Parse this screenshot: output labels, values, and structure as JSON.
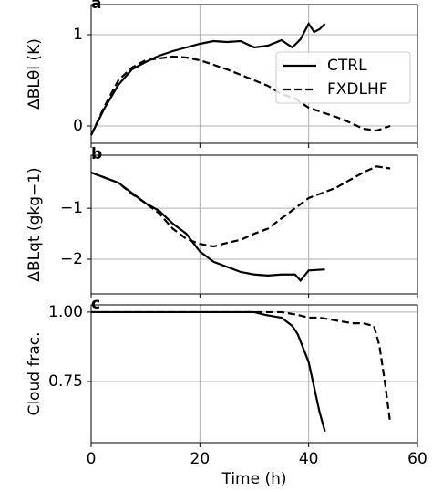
{
  "chart_data": [
    {
      "type": "line",
      "panel_label": "a",
      "ylabel": "ΔBLθl (K)",
      "xlim": [
        0,
        60
      ],
      "xticks": [
        0,
        20,
        40,
        60
      ],
      "ylim": [
        -0.19,
        1.33
      ],
      "yticks": [
        0,
        1
      ],
      "grid": true,
      "legend": "upper right",
      "series": [
        {
          "name": "CTRL",
          "color": "#000000",
          "linestyle": "solid",
          "x": [
            0,
            2.5,
            5,
            7.5,
            10,
            12.5,
            15,
            17.5,
            20,
            22.5,
            25,
            27.5,
            30,
            32.5,
            35,
            37,
            38.5,
            40,
            41,
            42,
            43
          ],
          "values": [
            -0.1,
            0.2,
            0.45,
            0.62,
            0.7,
            0.77,
            0.82,
            0.86,
            0.9,
            0.93,
            0.92,
            0.93,
            0.86,
            0.88,
            0.94,
            0.86,
            0.95,
            1.12,
            1.03,
            1.06,
            1.12
          ]
        },
        {
          "name": "FXDLHF",
          "color": "#000000",
          "linestyle": "dashed",
          "x": [
            0,
            2.5,
            5,
            7.5,
            10,
            12.5,
            15,
            17.5,
            20,
            22.5,
            25,
            27.5,
            30,
            32.5,
            35,
            37.5,
            40,
            42.5,
            45,
            47.5,
            50,
            52.5,
            55
          ],
          "values": [
            -0.1,
            0.22,
            0.5,
            0.64,
            0.72,
            0.74,
            0.76,
            0.75,
            0.72,
            0.67,
            0.62,
            0.56,
            0.5,
            0.44,
            0.35,
            0.3,
            0.2,
            0.15,
            0.1,
            0.04,
            -0.03,
            -0.05,
            0
          ]
        }
      ]
    },
    {
      "type": "line",
      "panel_label": "b",
      "ylabel": "ΔBLqt (gkg−1)",
      "xlim": [
        0,
        60
      ],
      "xticks": [
        0,
        20,
        40,
        60
      ],
      "ylim": [
        -2.68,
        0.04
      ],
      "yticks": [
        {
          "value": -2,
          "label": "−2"
        },
        {
          "value": -1,
          "label": "−1"
        }
      ],
      "grid": true,
      "series": [
        {
          "name": "CTRL",
          "color": "#000000",
          "linestyle": "solid",
          "x": [
            0,
            2.5,
            5,
            7.5,
            10,
            12.5,
            15,
            17.5,
            20,
            22.5,
            25,
            27.5,
            30,
            32.5,
            35,
            37.5,
            38.5,
            40,
            43
          ],
          "values": [
            -0.3,
            -0.4,
            -0.5,
            -0.7,
            -0.9,
            -1.05,
            -1.3,
            -1.5,
            -1.85,
            -2.05,
            -2.15,
            -2.25,
            -2.3,
            -2.32,
            -2.3,
            -2.3,
            -2.42,
            -2.22,
            -2.2
          ]
        },
        {
          "name": "FXDLHF",
          "color": "#000000",
          "linestyle": "dashed",
          "x": [
            0,
            2.5,
            5,
            7.5,
            10,
            12.5,
            15,
            17.5,
            20,
            22.5,
            25,
            27.5,
            30,
            32.5,
            35,
            37.5,
            40,
            42.5,
            45,
            47.5,
            50,
            52.5,
            55
          ],
          "values": [
            -0.3,
            -0.4,
            -0.5,
            -0.72,
            -0.9,
            -1.1,
            -1.4,
            -1.6,
            -1.7,
            -1.75,
            -1.68,
            -1.62,
            -1.5,
            -1.4,
            -1.2,
            -1.0,
            -0.8,
            -0.7,
            -0.6,
            -0.45,
            -0.3,
            -0.18,
            -0.22
          ]
        }
      ]
    },
    {
      "type": "line",
      "panel_label": "c",
      "ylabel": "Cloud frac.",
      "xlabel": "Time (h)",
      "xlim": [
        0,
        60
      ],
      "xticks": [
        0,
        20,
        40,
        60
      ],
      "ylim": [
        0.53,
        1.026
      ],
      "yticks": [
        {
          "value": 0.75,
          "label": "0.75"
        },
        {
          "value": 1,
          "label": "1.00"
        }
      ],
      "grid": true,
      "series": [
        {
          "name": "CTRL",
          "color": "#000000",
          "linestyle": "solid",
          "x": [
            0,
            10,
            20,
            30,
            32,
            35,
            37,
            38,
            40,
            42,
            43
          ],
          "values": [
            1.0,
            1.0,
            1.0,
            1.0,
            0.99,
            0.98,
            0.95,
            0.92,
            0.82,
            0.64,
            0.57
          ]
        },
        {
          "name": "FXDLHF",
          "color": "#000000",
          "linestyle": "dashed",
          "x": [
            0,
            10,
            20,
            30,
            35,
            38,
            40,
            42,
            45,
            48,
            50,
            52,
            53,
            54,
            55
          ],
          "values": [
            1.0,
            1.0,
            1.0,
            1.0,
            1.0,
            0.99,
            0.98,
            0.98,
            0.97,
            0.96,
            0.96,
            0.95,
            0.88,
            0.75,
            0.6
          ]
        }
      ]
    }
  ]
}
